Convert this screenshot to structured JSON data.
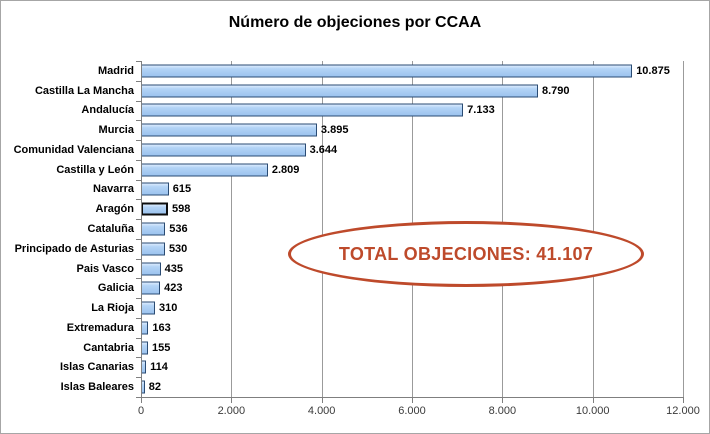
{
  "chart_data": {
    "type": "bar",
    "orientation": "horizontal",
    "title": "Número de objeciones por CCAA",
    "categories": [
      "Madrid",
      "Castilla La Mancha",
      "Andalucía",
      "Murcia",
      "Comunidad Valenciana",
      "Castilla y León",
      "Navarra",
      "Aragón",
      "Cataluña",
      "Principado de Asturias",
      "Pais Vasco",
      "Galicia",
      "La Rioja",
      "Extremadura",
      "Cantabria",
      "Islas Canarias",
      "Islas Baleares"
    ],
    "values": [
      10875,
      8790,
      7133,
      3895,
      3644,
      2809,
      615,
      598,
      536,
      530,
      435,
      423,
      310,
      163,
      155,
      114,
      82
    ],
    "value_labels": [
      "10.875",
      "8.790",
      "7.133",
      "3.895",
      "3.644",
      "2.809",
      "615",
      "598",
      "536",
      "530",
      "435",
      "423",
      "310",
      "163",
      "155",
      "114",
      "82"
    ],
    "x_ticks": [
      "0",
      "2.000",
      "4.000",
      "6.000",
      "8.000",
      "10.000",
      "12.000"
    ],
    "xlim": [
      0,
      12000
    ],
    "grid": "vertical-major",
    "legend": "none",
    "highlighted_index": 7,
    "bar_fill": "#9cc3ee",
    "bar_border": "#2a4b73",
    "annotation": {
      "text": "TOTAL OBJECIONES: 41.107",
      "color": "#be4a2b"
    }
  }
}
